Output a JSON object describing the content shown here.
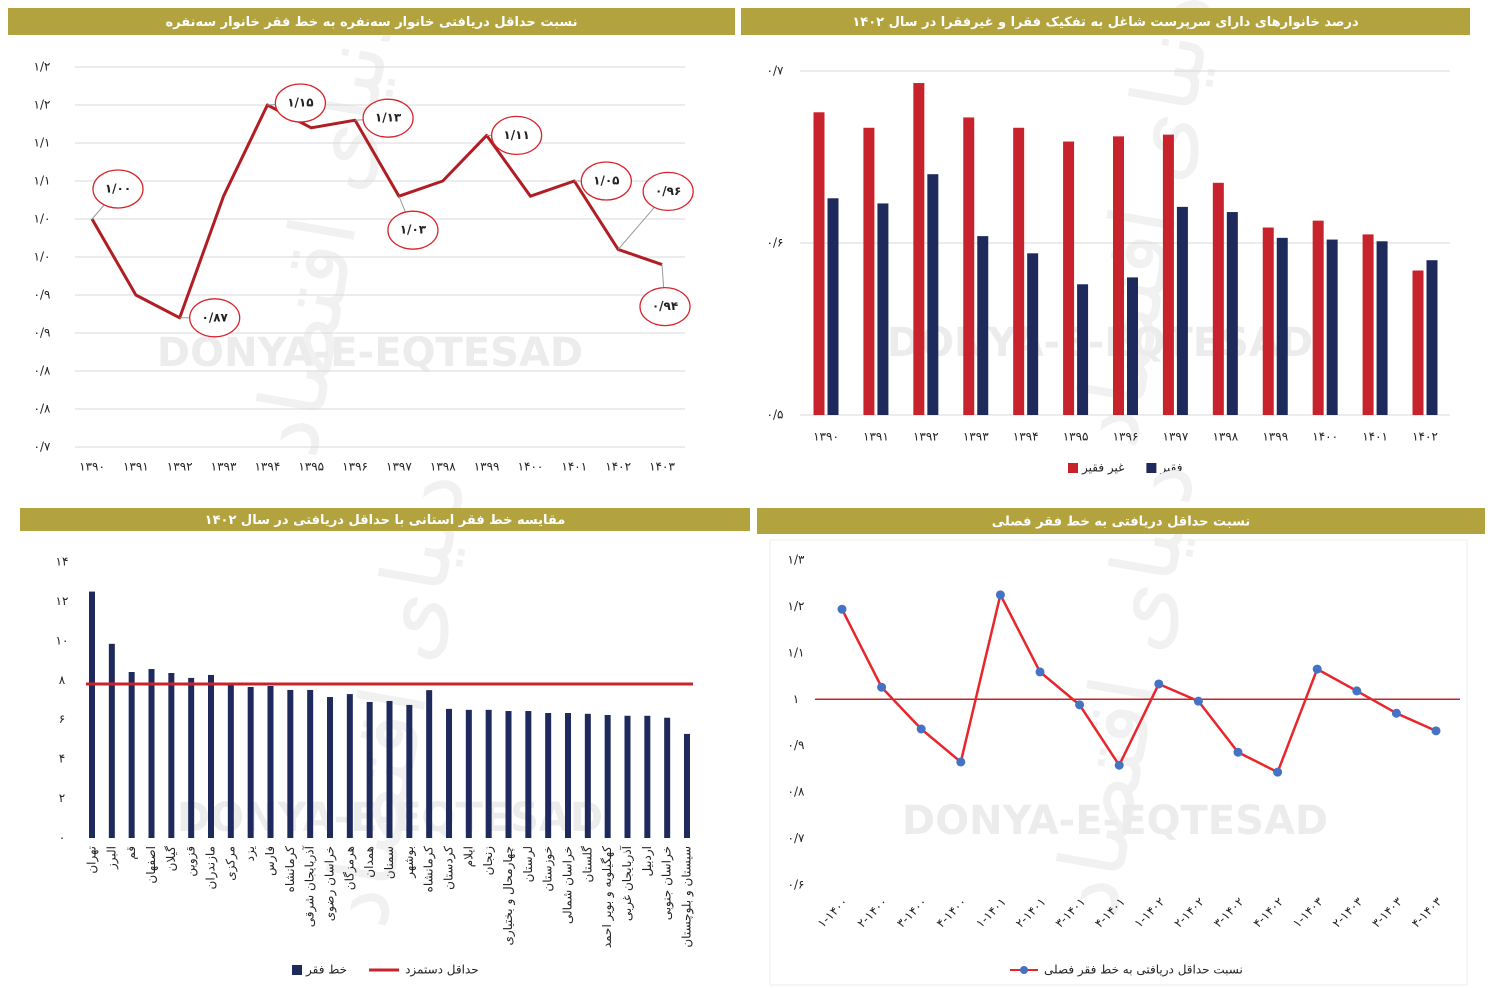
{
  "watermark": "DONYA-E-EQTESAD",
  "logo": "دنیای اقتصاد",
  "chart_data": [
    {
      "type": "line",
      "title": "نسبت حداقل دریافتی خانوار سه‌نفره به خط فقر خانوار سه‌نفره",
      "categories": [
        "۱۳۹۰",
        "۱۳۹۱",
        "۱۳۹۲",
        "۱۳۹۳",
        "۱۳۹۴",
        "۱۳۹۵",
        "۱۳۹۶",
        "۱۳۹۷",
        "۱۳۹۸",
        "۱۳۹۹",
        "۱۴۰۰",
        "۱۴۰۱",
        "۱۴۰۲",
        "۱۴۰۳"
      ],
      "values": [
        1.0,
        0.9,
        0.87,
        1.03,
        1.15,
        1.12,
        1.13,
        1.03,
        1.05,
        1.11,
        1.03,
        1.05,
        0.96,
        0.94
      ],
      "value_labels": [
        "۱/۰۰",
        null,
        "۰/۸۷",
        null,
        "۱/۱۵",
        null,
        "۱/۱۳",
        "۱/۰۳",
        null,
        "۱/۱۱",
        null,
        "۱/۰۵",
        "۰/۹۶",
        "۰/۹۴"
      ],
      "color": "#b01e23",
      "ylim": [
        0.7,
        1.2
      ],
      "yticks": [
        {
          "value": 1.2,
          "label": "۱/۲"
        },
        {
          "value": 1.15,
          "label": "۱/۲"
        },
        {
          "value": 1.1,
          "label": "۱/۱"
        },
        {
          "value": 1.05,
          "label": "۱/۱"
        },
        {
          "value": 1.0,
          "label": "۱/۰"
        },
        {
          "value": 0.95,
          "label": "۱/۰"
        },
        {
          "value": 0.9,
          "label": "۰/۹"
        },
        {
          "value": 0.85,
          "label": "۰/۹"
        },
        {
          "value": 0.8,
          "label": "۰/۸"
        },
        {
          "value": 0.75,
          "label": "۰/۸"
        },
        {
          "value": 0.7,
          "label": "۰/۷"
        }
      ],
      "grid": true
    },
    {
      "type": "bar",
      "title": "درصد خانوارهای دارای سرپرست شاغل به تفکیک فقرا و غیرفقرا در سال ۱۴۰۲",
      "categories": [
        "۱۳۹۰",
        "۱۳۹۱",
        "۱۳۹۲",
        "۱۳۹۳",
        "۱۳۹۴",
        "۱۳۹۵",
        "۱۳۹۶",
        "۱۳۹۷",
        "۱۳۹۸",
        "۱۳۹۹",
        "۱۴۰۰",
        "۱۴۰۱",
        "۱۴۰۲"
      ],
      "series": [
        {
          "name": "غیر فقیر",
          "color": "#c8232c",
          "values": [
            0.676,
            0.667,
            0.693,
            0.673,
            0.667,
            0.659,
            0.662,
            0.663,
            0.635,
            0.609,
            0.613,
            0.605,
            0.584
          ]
        },
        {
          "name": "فقیر",
          "color": "#1f2a5c",
          "values": [
            0.626,
            0.623,
            0.64,
            0.604,
            0.594,
            0.576,
            0.58,
            0.621,
            0.618,
            0.603,
            0.602,
            0.601,
            0.59
          ]
        }
      ],
      "ylim": [
        0.5,
        0.7
      ],
      "yticks": [
        {
          "value": 0.7,
          "label": "۰/۷"
        },
        {
          "value": 0.6,
          "label": "۰/۶"
        },
        {
          "value": 0.5,
          "label": "۰/۵"
        }
      ],
      "grid": true,
      "legend": "bottom"
    },
    {
      "type": "bar",
      "title": "مقایسه خط فقر استانی با حداقل دریافتی در سال ۱۴۰۲",
      "categories": [
        "تهران",
        "البرز",
        "قم",
        "اصفهان",
        "گیلان",
        "قزوین",
        "مازندران",
        "مرکزی",
        "یزد",
        "فارس",
        "کرمانشاه",
        "آذربایجان شرقی",
        "خراسان رضوی",
        "هرمزگان",
        "همدان",
        "سمنان",
        "بوشهر",
        "کرمانشاه",
        "کردستان",
        "ایلام",
        "زنجان",
        "چهارمحال و بختیاری",
        "لرستان",
        "خوزستان",
        "خراسان شمالی",
        "گلستان",
        "کهگیلویه و بویر احمد",
        "آذربایجان غربی",
        "اردبیل",
        "خراسان جنوبی",
        "سیستان و بلوچستان"
      ],
      "series": [
        {
          "name": "خط فقر",
          "color": "#1f2a5c",
          "values": [
            12.5,
            9.85,
            8.42,
            8.57,
            8.37,
            8.12,
            8.27,
            7.76,
            7.66,
            7.71,
            7.51,
            7.51,
            7.15,
            7.3,
            6.9,
            6.95,
            6.75,
            7.5,
            6.55,
            6.5,
            6.5,
            6.44,
            6.44,
            6.34,
            6.34,
            6.3,
            6.24,
            6.2,
            6.2,
            6.1,
            5.28
          ]
        }
      ],
      "reference_line": {
        "name": "حداقل دستمزد",
        "value": 7.81,
        "color": "#c8232c"
      },
      "ylim": [
        0,
        14
      ],
      "yticks": [
        {
          "value": 14,
          "label": "۱۴"
        },
        {
          "value": 12,
          "label": "۱۲"
        },
        {
          "value": 10,
          "label": "۱۰"
        },
        {
          "value": 8,
          "label": "۸"
        },
        {
          "value": 6,
          "label": "۶"
        },
        {
          "value": 4,
          "label": "۴"
        },
        {
          "value": 2,
          "label": "۲"
        },
        {
          "value": 0,
          "label": "۰"
        }
      ],
      "grid": false,
      "legend": "bottom"
    },
    {
      "type": "line",
      "title": "نسبت حداقل دریافتی به خط فقر فصلی",
      "categories": [
        "۱-۱۴۰۰",
        "۲-۱۴۰۰",
        "۳-۱۴۰۰",
        "۴-۱۴۰۰",
        "۱-۱۴۰۱",
        "۲-۱۴۰۱",
        "۳-۱۴۰۱",
        "۴-۱۴۰۱",
        "۱-۱۴۰۲",
        "۲-۱۴۰۲",
        "۳-۱۴۰۲",
        "۴-۱۴۰۲",
        "۱-۱۴۰۳",
        "۲-۱۴۰۳",
        "۳-۱۴۰۳",
        "۴-۱۴۰۳"
      ],
      "series": [
        {
          "name": "نسبت حداقل دریافتی به خط فقر فصلی",
          "color": "#e8262c",
          "marker_color": "#4472c4",
          "values": [
            1.194,
            1.026,
            0.936,
            0.865,
            1.225,
            1.059,
            0.988,
            0.858,
            1.033,
            0.996,
            0.886,
            0.843,
            1.065,
            1.018,
            0.97,
            0.932
          ]
        }
      ],
      "reference_line": {
        "value": 1,
        "color": "#c8232c"
      },
      "ylim": [
        0.6,
        1.3
      ],
      "yticks": [
        {
          "value": 1.3,
          "label": "۱/۳"
        },
        {
          "value": 1.2,
          "label": "۱/۲"
        },
        {
          "value": 1.1,
          "label": "۱/۱"
        },
        {
          "value": 1,
          "label": "۱"
        },
        {
          "value": 0.9,
          "label": "۰/۹"
        },
        {
          "value": 0.8,
          "label": "۰/۸"
        },
        {
          "value": 0.7,
          "label": "۰/۷"
        },
        {
          "value": 0.6,
          "label": "۰/۶"
        }
      ],
      "grid": false,
      "legend": "bottom"
    }
  ]
}
